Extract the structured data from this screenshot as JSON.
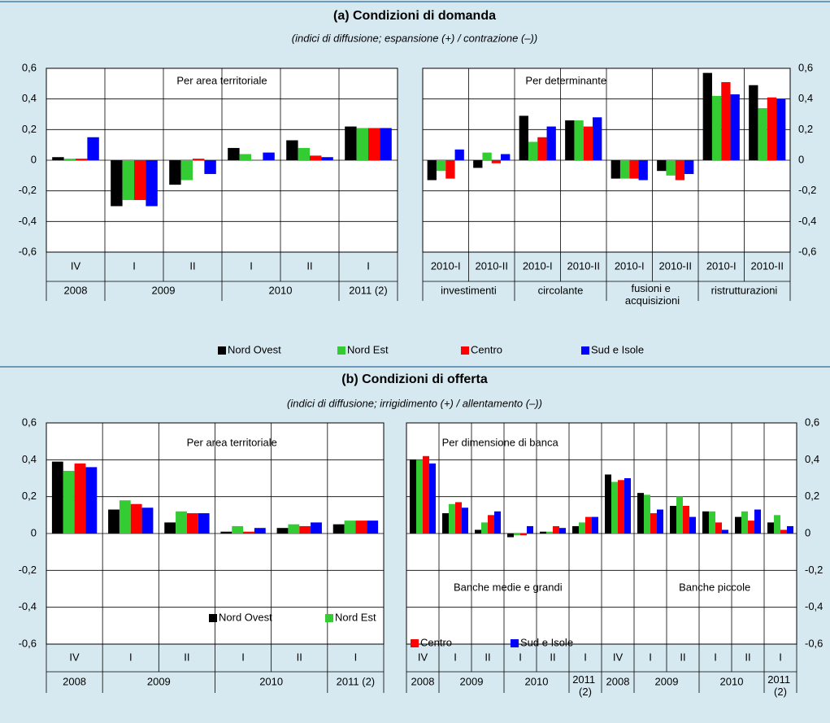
{
  "sections": [
    {
      "title": "(a) Condizioni di domanda",
      "subtitle": "(indici di diffusione; espansione (+) / contrazione (–))"
    },
    {
      "title": "(b) Condizioni di offerta",
      "subtitle": "(indici di diffusione; irrigidimento (+) / allentamento (–))"
    }
  ],
  "chart_data": [
    {
      "type": "bar",
      "annotations": [
        "Per area territoriale"
      ],
      "yaxis_side": "left",
      "grid": true,
      "category_groups": [
        {
          "label": "2008",
          "categories": [
            "IV"
          ]
        },
        {
          "label": "2009",
          "categories": [
            "I",
            "II"
          ]
        },
        {
          "label": "2010",
          "categories": [
            "I",
            "II"
          ]
        },
        {
          "label": "2011 (2)",
          "categories": [
            "I"
          ]
        }
      ],
      "ylim": [
        -0.6,
        0.6
      ],
      "yticks": [
        {
          "value": -0.6,
          "label": "-0,6"
        },
        {
          "value": -0.4,
          "label": "-0,4"
        },
        {
          "value": -0.2,
          "label": "-0,2"
        },
        0,
        {
          "value": 0.2,
          "label": "0,2"
        },
        {
          "value": 0.4,
          "label": "0,4"
        },
        {
          "value": 0.6,
          "label": "0,6"
        }
      ],
      "series": [
        {
          "name": "Nord Ovest",
          "color": "#000000",
          "values": [
            0.02,
            -0.3,
            -0.16,
            0.08,
            0.13,
            0.22
          ]
        },
        {
          "name": "Nord Est",
          "color": "#33cc33",
          "values": [
            0.01,
            -0.26,
            -0.13,
            0.04,
            0.08,
            0.21
          ]
        },
        {
          "name": "Centro",
          "color": "#ff0000",
          "values": [
            0.01,
            -0.26,
            0.01,
            0,
            0.03,
            0.21
          ]
        },
        {
          "name": "Sud e Isole",
          "color": "#0000ff",
          "values": [
            0.15,
            -0.3,
            -0.09,
            0.05,
            0.02,
            0.21
          ]
        }
      ]
    },
    {
      "type": "bar",
      "annotations": [
        "Per determinante"
      ],
      "yaxis_side": "right",
      "grid": true,
      "category_groups": [
        {
          "label": "investimenti",
          "categories": [
            "2010-I",
            "2010-II"
          ]
        },
        {
          "label": "circolante",
          "categories": [
            "2010-I",
            "2010-II"
          ]
        },
        {
          "label": "fusioni e acquisizioni",
          "categories": [
            "2010-I",
            "2010-II"
          ]
        },
        {
          "label": "ristrutturazioni",
          "categories": [
            "2010-I",
            "2010-II"
          ]
        }
      ],
      "ylim": [
        -0.6,
        0.6
      ],
      "yticks": [
        {
          "value": -0.6,
          "label": "-0,6"
        },
        {
          "value": -0.4,
          "label": "-0,4"
        },
        {
          "value": -0.2,
          "label": "-0,2"
        },
        0,
        {
          "value": 0.2,
          "label": "0,2"
        },
        {
          "value": 0.4,
          "label": "0,4"
        },
        {
          "value": 0.6,
          "label": "0,6"
        }
      ],
      "series": [
        {
          "name": "Nord Ovest",
          "color": "#000000",
          "values": [
            -0.13,
            -0.05,
            0.29,
            0.26,
            -0.12,
            -0.07,
            0.57,
            0.49
          ]
        },
        {
          "name": "Nord Est",
          "color": "#33cc33",
          "values": [
            -0.07,
            0.05,
            0.12,
            0.26,
            -0.12,
            -0.1,
            0.42,
            0.34
          ]
        },
        {
          "name": "Centro",
          "color": "#ff0000",
          "values": [
            -0.12,
            -0.02,
            0.15,
            0.22,
            -0.12,
            -0.13,
            0.51,
            0.41
          ]
        },
        {
          "name": "Sud e Isole",
          "color": "#0000ff",
          "values": [
            0.07,
            0.04,
            0.22,
            0.28,
            -0.13,
            -0.09,
            0.43,
            0.4
          ]
        }
      ]
    },
    {
      "type": "bar",
      "annotations": [
        "Per area territoriale"
      ],
      "yaxis_side": "left",
      "grid": true,
      "category_groups": [
        {
          "label": "2008",
          "categories": [
            "IV"
          ]
        },
        {
          "label": "2009",
          "categories": [
            "I",
            "II"
          ]
        },
        {
          "label": "2010",
          "categories": [
            "I",
            "II"
          ]
        },
        {
          "label": "2011 (2)",
          "categories": [
            "I"
          ]
        }
      ],
      "ylim": [
        -0.6,
        0.6
      ],
      "yticks": [
        {
          "value": -0.6,
          "label": "-0,6"
        },
        {
          "value": -0.4,
          "label": "-0,4"
        },
        {
          "value": -0.2,
          "label": "-0,2"
        },
        0,
        {
          "value": 0.2,
          "label": "0,2"
        },
        {
          "value": 0.4,
          "label": "0,4"
        },
        {
          "value": 0.6,
          "label": "0,6"
        }
      ],
      "series": [
        {
          "name": "Nord Ovest",
          "color": "#000000",
          "values": [
            0.39,
            0.13,
            0.06,
            0.01,
            0.03,
            0.05
          ]
        },
        {
          "name": "Nord Est",
          "color": "#33cc33",
          "values": [
            0.34,
            0.18,
            0.12,
            0.04,
            0.05,
            0.07
          ]
        },
        {
          "name": "Centro",
          "color": "#ff0000",
          "values": [
            0.38,
            0.16,
            0.11,
            0.01,
            0.04,
            0.07
          ]
        },
        {
          "name": "Sud e Isole",
          "color": "#0000ff",
          "values": [
            0.36,
            0.14,
            0.11,
            0.03,
            0.06,
            0.07
          ]
        }
      ]
    },
    {
      "type": "bar",
      "annotations": [
        "Per dimensione di banca",
        "Banche medie e grandi",
        "Banche piccole"
      ],
      "yaxis_side": "right",
      "grid": true,
      "category_groups": [
        {
          "label": "2008",
          "categories": [
            "IV"
          ]
        },
        {
          "label": "2009",
          "categories": [
            "I",
            "II"
          ]
        },
        {
          "label": "2010",
          "categories": [
            "I",
            "II"
          ]
        },
        {
          "label": "2011 (2)",
          "categories": [
            "I"
          ]
        },
        {
          "label": "2008",
          "categories": [
            "IV"
          ]
        },
        {
          "label": "2009",
          "categories": [
            "I",
            "II"
          ]
        },
        {
          "label": "2010",
          "categories": [
            "I",
            "II"
          ]
        },
        {
          "label": "2011 (2)",
          "categories": [
            "I"
          ]
        }
      ],
      "ylim": [
        -0.6,
        0.6
      ],
      "yticks": [
        {
          "value": -0.6,
          "label": "-0,6"
        },
        {
          "value": -0.4,
          "label": "-0,4"
        },
        {
          "value": -0.2,
          "label": "-0,2"
        },
        0,
        {
          "value": 0.2,
          "label": "0,2"
        },
        {
          "value": 0.4,
          "label": "0,4"
        },
        {
          "value": 0.6,
          "label": "0,6"
        }
      ],
      "series": [
        {
          "name": "Nord Ovest",
          "color": "#000000",
          "values": [
            0.4,
            0.11,
            0.02,
            -0.02,
            0.01,
            0.04,
            0.32,
            0.22,
            0.15,
            0.12,
            0.09,
            0.06
          ]
        },
        {
          "name": "Nord Est",
          "color": "#33cc33",
          "values": [
            0.4,
            0.16,
            0.06,
            -0.01,
            0.01,
            0.06,
            0.28,
            0.21,
            0.2,
            0.12,
            0.12,
            0.1
          ]
        },
        {
          "name": "Centro",
          "color": "#ff0000",
          "values": [
            0.42,
            0.17,
            0.1,
            -0.01,
            0.04,
            0.09,
            0.29,
            0.11,
            0.15,
            0.06,
            0.07,
            0.02
          ]
        },
        {
          "name": "Sud e Isole",
          "color": "#0000ff",
          "values": [
            0.38,
            0.14,
            0.12,
            0.04,
            0.03,
            0.09,
            0.3,
            0.13,
            0.09,
            0.02,
            0.13,
            0.04
          ]
        }
      ]
    }
  ]
}
